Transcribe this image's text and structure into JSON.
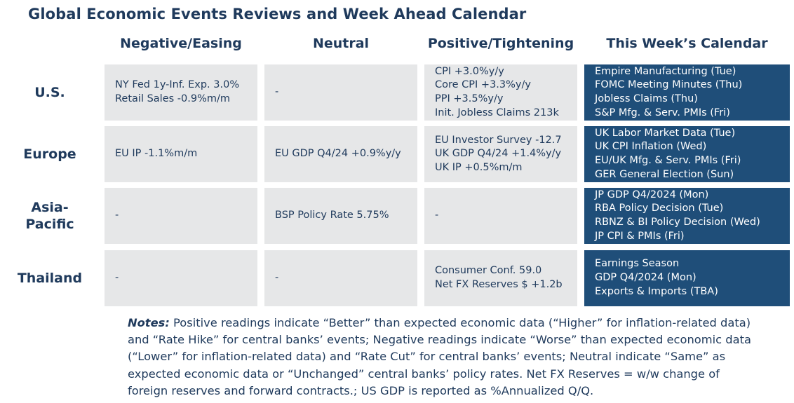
{
  "title": "Global Economic Events Reviews and Week Ahead Calendar",
  "columns": [
    "Negative/Easing",
    "Neutral",
    "Positive/Tightening",
    "This Week’s Calendar"
  ],
  "rows": [
    {
      "label": "U.S.",
      "negative": [
        "NY Fed 1y-Inf. Exp. 3.0%",
        "Retail Sales -0.9%m/m"
      ],
      "neutral": [
        "-"
      ],
      "positive": [
        "CPI +3.0%y/y",
        "Core CPI +3.3%y/y",
        "PPI +3.5%y/y",
        "Init. Jobless Claims 213k"
      ],
      "calendar": [
        "Empire Manufacturing (Tue)",
        "FOMC Meeting Minutes (Thu)",
        "Jobless Claims (Thu)",
        "S&P Mfg. & Serv. PMIs (Fri)"
      ]
    },
    {
      "label": "Europe",
      "negative": [
        "EU IP -1.1%m/m"
      ],
      "neutral": [
        "EU GDP Q4/24 +0.9%y/y"
      ],
      "positive": [
        "EU Investor Survey -12.7",
        "UK GDP Q4/24 +1.4%y/y",
        "UK IP +0.5%m/m"
      ],
      "calendar": [
        "UK Labor Market Data (Tue)",
        "UK CPI Inflation (Wed)",
        "EU/UK Mfg. & Serv. PMIs (Fri)",
        "GER General Election (Sun)"
      ]
    },
    {
      "label": "Asia-Pacific",
      "negative": [
        "-"
      ],
      "neutral": [
        "BSP Policy Rate 5.75%"
      ],
      "positive": [
        "-"
      ],
      "calendar": [
        "JP GDP Q4/2024 (Mon)",
        "RBA Policy Decision (Tue)",
        "RBNZ & BI Policy Decision (Wed)",
        "JP CPI & PMIs (Fri)"
      ]
    },
    {
      "label": "Thailand",
      "negative": [
        "-"
      ],
      "neutral": [
        "-"
      ],
      "positive": [
        "Consumer Conf. 59.0",
        "Net FX Reserves $ +1.2b"
      ],
      "calendar": [
        "Earnings Season",
        "GDP Q4/2024 (Mon)",
        "Exports & Imports (TBA)"
      ]
    }
  ],
  "notes": {
    "label": "Notes:",
    "text": " Positive readings indicate “Better” than expected economic data (“Higher” for inflation-related data) and “Rate Hike” for central banks’ events; Negative readings indicate “Worse” than expected economic data (“Lower” for inflation-related data) and “Rate Cut” for central banks’ events; Neutral indicate “Same” as expected economic data or “Unchanged” central banks’ policy rates. Net FX Reserves = w/w change of foreign reserves and forward contracts.; US GDP is reported as %Annualized Q/Q."
  },
  "colors": {
    "text": "#1f3a5c",
    "cell_gray": "#e6e7e8",
    "calendar_blue": "#1f4e79",
    "calendar_text": "#ffffff"
  }
}
